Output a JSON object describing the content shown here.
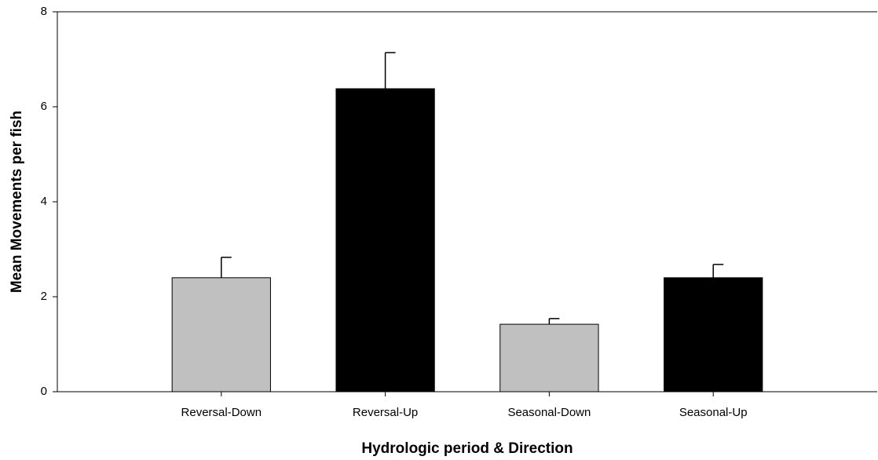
{
  "chart_data": {
    "type": "bar",
    "x_label": "Hydrologic period & Direction",
    "y_label": "Mean Movements per fish",
    "categories": [
      "Reversal-Down",
      "Reversal-Up",
      "Seasonal-Down",
      "Seasonal-Up"
    ],
    "values": [
      2.4,
      6.38,
      1.42,
      2.4
    ],
    "errors": [
      0.43,
      0.76,
      0.12,
      0.28
    ],
    "colors": [
      "#c0c0c0",
      "#000000",
      "#c0c0c0",
      "#000000"
    ],
    "ylim": [
      0,
      8
    ],
    "yticks": [
      0,
      2,
      4,
      6,
      8
    ],
    "grid": false
  }
}
